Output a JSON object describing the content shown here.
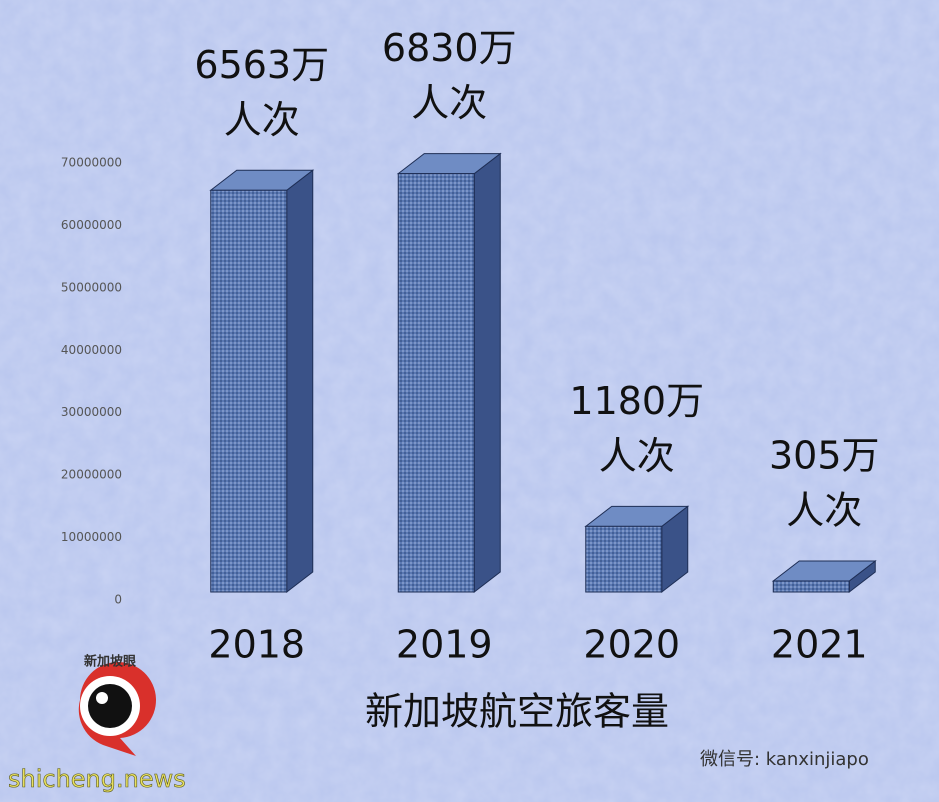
{
  "chart_data": {
    "type": "bar3d",
    "title": "新加坡航空旅客量",
    "categories": [
      "2018",
      "2019",
      "2020",
      "2021"
    ],
    "values": [
      65630000,
      68300000,
      11800000,
      3050000
    ],
    "value_labels": [
      [
        "6563万",
        "人次"
      ],
      [
        "6830万",
        "人次"
      ],
      [
        "1180万",
        "人次"
      ],
      [
        "305万",
        "人次"
      ]
    ],
    "color": "#5b79b3",
    "ylim": [
      0,
      70000000
    ],
    "yticks": [
      0,
      10000000,
      20000000,
      30000000,
      40000000,
      50000000,
      60000000,
      70000000
    ],
    "annotations": [
      "新加坡眼",
      "微信号: kanxinjiapo",
      "shicheng.news"
    ]
  }
}
